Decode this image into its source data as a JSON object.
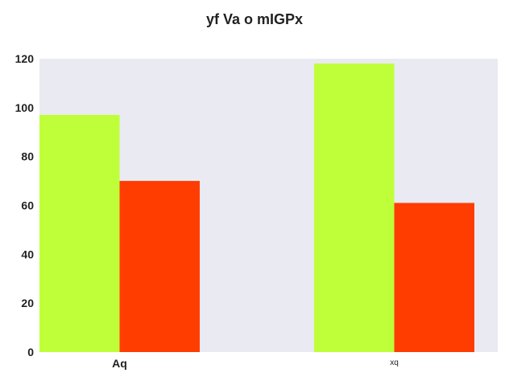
{
  "chart_data": {
    "type": "bar",
    "title": "yf Va o mIGPx",
    "xlabel": "",
    "ylabel": "",
    "categories": [
      "Aq",
      "xq"
    ],
    "series": [
      {
        "values": [
          97,
          70
        ]
      },
      {
        "values": [
          118,
          61
        ]
      }
    ],
    "ylim": [
      0,
      120
    ],
    "yticks": [
      0,
      20,
      40,
      60,
      80,
      100,
      120
    ],
    "grid": false,
    "legend": "none",
    "colors": {
      "plot_background": "#eaeaf2",
      "bar_primary": "#bfff3a",
      "bar_secondary": "#ff3d00"
    }
  }
}
